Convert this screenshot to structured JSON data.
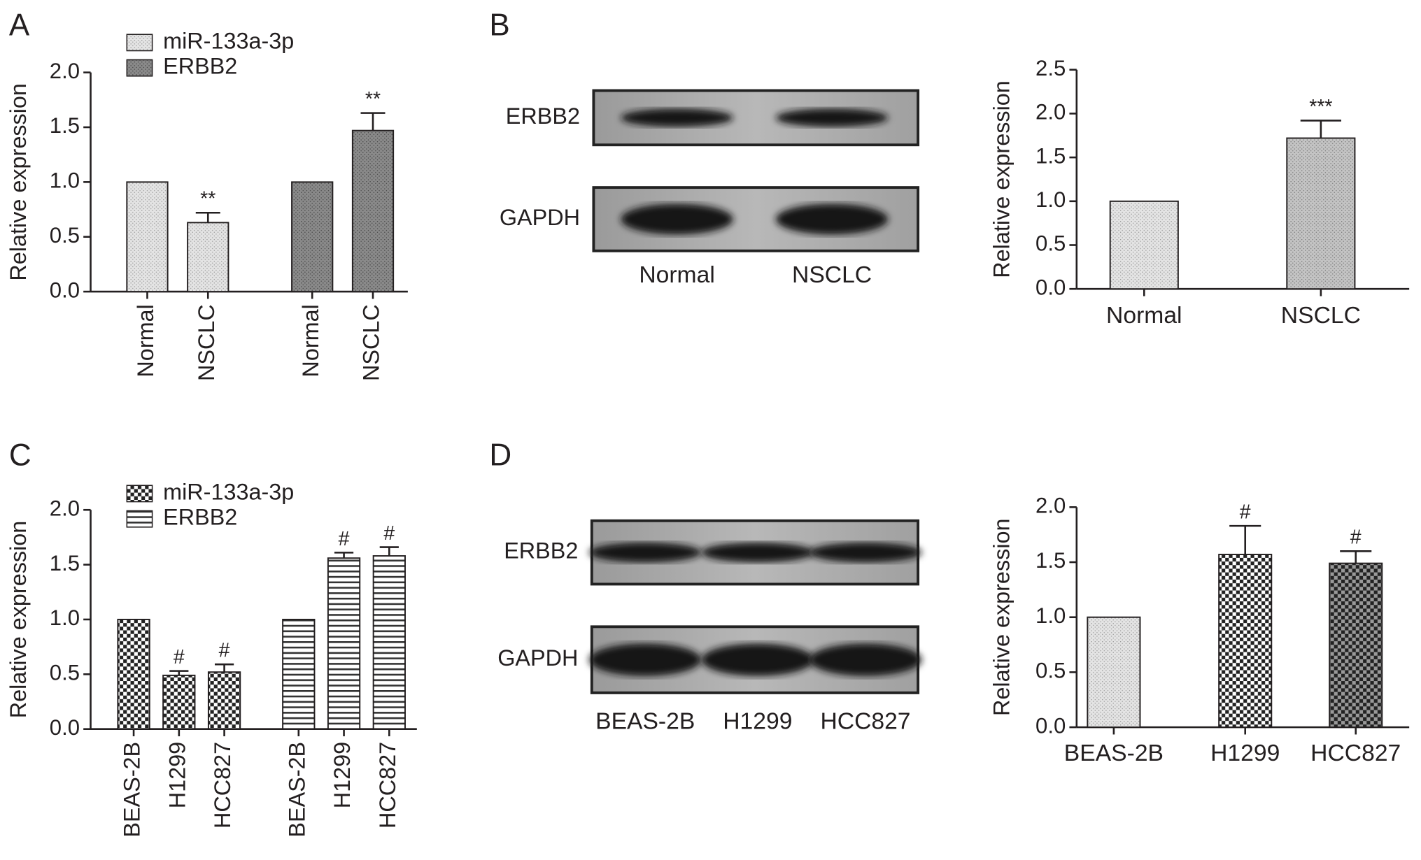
{
  "chart_data": [
    {
      "type": "bar",
      "panel_label": "A",
      "y_label": "Relative expression",
      "categories": [
        "Normal",
        "NSCLC"
      ],
      "series": [
        {
          "name": "miR-133a-3p",
          "pattern": "dots-light",
          "values": [
            1,
            0.63
          ],
          "errors": [
            null,
            0.09
          ],
          "annotations": [
            null,
            "**"
          ]
        },
        {
          "name": "ERBB2",
          "pattern": "dots-dark",
          "values": [
            1,
            1.47
          ],
          "errors": [
            null,
            0.16
          ],
          "annotations": [
            null,
            "**"
          ]
        }
      ],
      "ylim": [
        0,
        2.0
      ],
      "yticks": [
        {
          "value": 0,
          "label": "0.0"
        },
        0.5,
        {
          "value": 1,
          "label": "1.0"
        },
        1.5,
        {
          "value": 2,
          "label": "2.0"
        }
      ]
    },
    {
      "type": "bar",
      "panel_label": "B",
      "y_label": "Relative expression",
      "blot": {
        "rows": [
          "ERBB2",
          "GAPDH"
        ],
        "lanes": [
          "Normal",
          "NSCLC"
        ]
      },
      "categories": [
        "Normal",
        "NSCLC"
      ],
      "values": [
        1,
        1.72
      ],
      "errors": [
        null,
        0.2
      ],
      "annotations": [
        null,
        "***"
      ],
      "patterns": [
        "dots-light",
        "dots-mid"
      ],
      "ylim": [
        0,
        2.5
      ],
      "yticks": [
        {
          "value": 0,
          "label": "0.0"
        },
        0.5,
        {
          "value": 1,
          "label": "1.0"
        },
        1.5,
        {
          "value": 2,
          "label": "2.0"
        },
        2.5
      ]
    },
    {
      "type": "bar",
      "panel_label": "C",
      "y_label": "Relative expression",
      "categories": [
        "BEAS-2B",
        "H1299",
        "HCC827"
      ],
      "series": [
        {
          "name": "miR-133a-3p",
          "pattern": "checker",
          "values": [
            1,
            0.49,
            0.52
          ],
          "errors": [
            null,
            0.04,
            0.07
          ],
          "annotations": [
            null,
            "#",
            "#"
          ]
        },
        {
          "name": "ERBB2",
          "pattern": "stripes",
          "values": [
            1,
            1.56,
            1.58
          ],
          "errors": [
            null,
            0.05,
            0.08
          ],
          "annotations": [
            null,
            "#",
            "#"
          ]
        }
      ],
      "ylim": [
        0,
        2.0
      ],
      "yticks": [
        {
          "value": 0,
          "label": "0.0"
        },
        0.5,
        {
          "value": 1,
          "label": "1.0"
        },
        1.5,
        {
          "value": 2,
          "label": "2.0"
        }
      ]
    },
    {
      "type": "bar",
      "panel_label": "D",
      "y_label": "Relative expression",
      "blot": {
        "rows": [
          "ERBB2",
          "GAPDH"
        ],
        "lanes": [
          "BEAS-2B",
          "H1299",
          "HCC827"
        ]
      },
      "categories": [
        "BEAS-2B",
        "H1299",
        "HCC827"
      ],
      "values": [
        1,
        1.57,
        1.49
      ],
      "errors": [
        null,
        0.26,
        0.11
      ],
      "annotations": [
        null,
        "#",
        "#"
      ],
      "patterns": [
        "dots-light",
        "checker",
        "checker-dark"
      ],
      "ylim": [
        0,
        2.0
      ],
      "yticks": [
        {
          "value": 0,
          "label": "0.0"
        },
        0.5,
        {
          "value": 1,
          "label": "1.0"
        },
        1.5,
        {
          "value": 2,
          "label": "2.0"
        }
      ]
    }
  ]
}
